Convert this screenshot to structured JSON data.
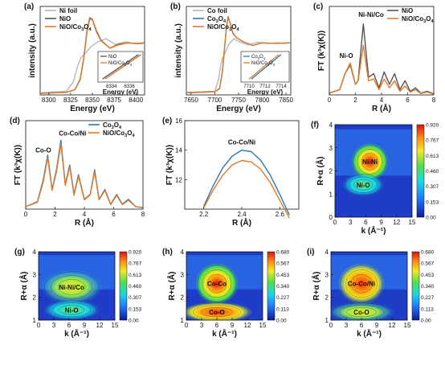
{
  "colors": {
    "foil": "#b8b8b8",
    "nio": "#555555",
    "co3o4": "#2a78b8",
    "composite": "#e07b2a"
  },
  "chart_data": [
    {
      "panel": "(a)",
      "type": "line",
      "xlabel": "Energy (eV)",
      "ylabel": "intensity (a.u.)",
      "xlim": [
        8290,
        8410
      ],
      "ylim": [
        0,
        1.7
      ],
      "xticks": [
        "8300",
        "8325",
        "8350",
        "8375",
        "8400"
      ],
      "legend": [
        "Ni foil",
        "NiO",
        "NiO/Co3O4"
      ],
      "series": [
        {
          "name": "Ni foil",
          "x": [
            8290,
            8320,
            8328,
            8333,
            8337,
            8342,
            8348,
            8356,
            8366,
            8376,
            8388,
            8400,
            8410
          ],
          "y": [
            0.04,
            0.07,
            0.25,
            0.55,
            0.72,
            0.8,
            0.92,
            1.02,
            1.08,
            0.97,
            1.02,
            0.98,
            0.99
          ]
        },
        {
          "name": "NiO",
          "x": [
            8290,
            8320,
            8330,
            8336,
            8340,
            8344,
            8347,
            8350,
            8355,
            8360,
            8370,
            8380,
            8390,
            8400,
            8410
          ],
          "y": [
            0.03,
            0.05,
            0.1,
            0.3,
            0.7,
            1.25,
            1.48,
            1.45,
            1.22,
            1.05,
            0.9,
            0.97,
            1.0,
            0.99,
            1.0
          ]
        },
        {
          "name": "NiO/Co3O4",
          "x": [
            8290,
            8320,
            8330,
            8336,
            8340,
            8344,
            8347,
            8350,
            8355,
            8360,
            8370,
            8380,
            8390,
            8400,
            8410
          ],
          "y": [
            0.03,
            0.05,
            0.1,
            0.29,
            0.68,
            1.22,
            1.46,
            1.44,
            1.2,
            1.04,
            0.9,
            0.96,
            1.0,
            0.99,
            1.0
          ]
        }
      ],
      "inset": {
        "xlabel": "Energy (eV)",
        "xticks": [
          "8334",
          "8336"
        ],
        "legend": [
          "NiO",
          "NiO/Co3O4"
        ],
        "series": [
          {
            "name": "NiO",
            "x": [
              8333,
              8337
            ],
            "y": [
              0.1,
              0.9
            ]
          },
          {
            "name": "NiO/Co3O4",
            "x": [
              8333.3,
              8337.3
            ],
            "y": [
              0.1,
              0.9
            ]
          }
        ]
      }
    },
    {
      "panel": "(b)",
      "type": "line",
      "xlabel": "Energy (eV)",
      "ylabel": "intensity (a.u.)",
      "xlim": [
        7640,
        7860
      ],
      "ylim": [
        0,
        1.7
      ],
      "xticks": [
        "7650",
        "7700",
        "7750",
        "7800",
        "7850"
      ],
      "legend": [
        "Co foil",
        "Co3O4",
        "NiO/Co3O4"
      ],
      "series": [
        {
          "name": "Co foil",
          "x": [
            7640,
            7700,
            7708,
            7712,
            7716,
            7722,
            7730,
            7740,
            7752,
            7770,
            7790,
            7810,
            7830,
            7860
          ],
          "y": [
            0.05,
            0.07,
            0.3,
            0.55,
            0.7,
            0.82,
            0.98,
            1.08,
            1.02,
            0.96,
            1.01,
            0.99,
            1.0,
            1.0
          ]
        },
        {
          "name": "Co3O4",
          "x": [
            7640,
            7700,
            7710,
            7716,
            7720,
            7724,
            7728,
            7732,
            7738,
            7746,
            7760,
            7780,
            7800,
            7830,
            7860
          ],
          "y": [
            0.04,
            0.06,
            0.12,
            0.45,
            0.85,
            1.25,
            1.5,
            1.38,
            1.18,
            1.1,
            1.02,
            0.95,
            1.0,
            0.99,
            1.0
          ]
        },
        {
          "name": "NiO/Co3O4",
          "x": [
            7640,
            7700,
            7710,
            7716,
            7720,
            7724,
            7728,
            7732,
            7738,
            7746,
            7760,
            7780,
            7800,
            7830,
            7860
          ],
          "y": [
            0.04,
            0.06,
            0.13,
            0.46,
            0.86,
            1.26,
            1.51,
            1.39,
            1.19,
            1.1,
            1.02,
            0.95,
            1.0,
            0.99,
            1.0
          ]
        }
      ],
      "inset": {
        "xlabel": "Energy (eV)",
        "xticks": [
          "7710",
          "7712",
          "7714"
        ],
        "legend": [
          "Co3O4",
          "NiO/Co3O4"
        ],
        "series": [
          {
            "name": "Co3O4",
            "x": [
              7710.3,
              7714
            ],
            "y": [
              0.1,
              0.9
            ]
          },
          {
            "name": "NiO/Co3O4",
            "x": [
              7710,
              7713.7
            ],
            "y": [
              0.1,
              0.9
            ]
          }
        ]
      }
    },
    {
      "panel": "(c)",
      "type": "line",
      "xlabel": "R (Å)",
      "ylabel": "FT (k³χ(K))",
      "xlim": [
        0,
        8
      ],
      "ylim": [
        0,
        25
      ],
      "xticks": [
        "0",
        "2",
        "4",
        "6",
        "8"
      ],
      "legend": [
        "NiO",
        "NiO/Co3O4"
      ],
      "annotations": [
        "Ni-O",
        "Ni-Ni/Co"
      ],
      "series": [
        {
          "name": "NiO",
          "x": [
            0,
            0.8,
            1.2,
            1.6,
            2.0,
            2.2,
            2.6,
            3.0,
            3.4,
            3.8,
            4.2,
            4.6,
            5.0,
            5.4,
            5.8,
            6.2,
            6.6,
            7.0,
            7.5,
            8.0
          ],
          "y": [
            0.5,
            1.5,
            6,
            8.5,
            3,
            4,
            20,
            5,
            6,
            2,
            6.5,
            3,
            6,
            1.5,
            4,
            1,
            2,
            0.5,
            1,
            0.3
          ]
        },
        {
          "name": "NiO/Co3O4",
          "x": [
            0,
            0.8,
            1.2,
            1.6,
            2.0,
            2.2,
            2.6,
            3.0,
            3.4,
            3.8,
            4.2,
            4.6,
            5.0,
            5.4,
            5.8,
            6.2,
            6.6,
            7.0,
            7.5,
            8.0
          ],
          "y": [
            0.5,
            1.5,
            6,
            9,
            3,
            4,
            14,
            4,
            4.5,
            1.5,
            4.5,
            2,
            4,
            1,
            2.5,
            0.8,
            1.5,
            0.4,
            0.8,
            0.2
          ]
        }
      ]
    },
    {
      "panel": "(d)",
      "type": "line",
      "xlabel": "R (Å)",
      "ylabel": "FT (k³χ(K))",
      "xlim": [
        0,
        8
      ],
      "ylim": [
        0,
        18
      ],
      "xticks": [
        "0",
        "2",
        "4",
        "6",
        "8"
      ],
      "legend": [
        "Co3O4",
        "NiO/Co3O4"
      ],
      "annotations": [
        "Co-O",
        "Co-Co/Ni"
      ],
      "series": [
        {
          "name": "Co3O4",
          "x": [
            0,
            0.8,
            1.2,
            1.5,
            1.8,
            2.1,
            2.4,
            2.7,
            3.0,
            3.3,
            3.6,
            4.0,
            4.4,
            4.7,
            5.0,
            5.4,
            5.8,
            6.2,
            6.6,
            7.0,
            7.5,
            8.0
          ],
          "y": [
            0.5,
            1.5,
            6,
            11,
            4,
            8,
            14,
            5,
            9,
            3,
            7,
            2,
            3,
            8,
            2,
            4,
            1,
            3,
            1,
            2,
            0.5,
            0.3
          ]
        },
        {
          "name": "NiO/Co3O4",
          "x": [
            0,
            0.8,
            1.2,
            1.5,
            1.8,
            2.1,
            2.4,
            2.7,
            3.0,
            3.3,
            3.6,
            4.0,
            4.4,
            4.7,
            5.0,
            5.4,
            5.8,
            6.2,
            6.6,
            7.0,
            7.5,
            8.0
          ],
          "y": [
            0.5,
            1.4,
            5.6,
            10.5,
            3.8,
            7.6,
            13.3,
            4.8,
            8.6,
            2.8,
            6.7,
            1.9,
            2.9,
            7.6,
            1.9,
            3.8,
            0.9,
            2.8,
            0.9,
            1.8,
            0.5,
            0.3
          ]
        }
      ]
    },
    {
      "panel": "(e)",
      "type": "line",
      "xlabel": "R (Å)",
      "ylabel": "FT (k³χ(K))",
      "xlim": [
        2.1,
        2.7
      ],
      "ylim": [
        10,
        16
      ],
      "xticks": [
        "2.2",
        "2.4",
        "2.6"
      ],
      "yticks": [
        "12",
        "14",
        "16"
      ],
      "annotations": [
        "Co-Co/Ni"
      ],
      "series": [
        {
          "name": "Co3O4",
          "x": [
            2.2,
            2.25,
            2.3,
            2.35,
            2.4,
            2.45,
            2.5,
            2.55,
            2.6,
            2.65
          ],
          "y": [
            10.2,
            11.6,
            12.8,
            13.6,
            14.0,
            13.9,
            13.3,
            12.3,
            11.0,
            9.6
          ]
        },
        {
          "name": "NiO/Co3O4",
          "x": [
            2.2,
            2.25,
            2.3,
            2.35,
            2.4,
            2.45,
            2.5,
            2.55,
            2.6,
            2.65
          ],
          "y": [
            10.1,
            11.3,
            12.3,
            13.0,
            13.3,
            13.2,
            12.7,
            11.8,
            10.6,
            9.4
          ]
        }
      ]
    },
    {
      "panel": "(f)",
      "type": "heatmap",
      "xlabel": "k (Å⁻¹)",
      "ylabel": "R+α (Å)",
      "xlim": [
        0,
        15
      ],
      "ylim": [
        0,
        4
      ],
      "xticks": [
        "0",
        "3",
        "6",
        "9",
        "12",
        "15"
      ],
      "yticks": [
        "0",
        "1",
        "2",
        "3",
        "4"
      ],
      "annotations": [
        "Ni-Ni",
        "Ni-O"
      ],
      "colorbar": [
        "0.920",
        "0.767",
        "0.613",
        "0.460",
        "0.307",
        "0.153",
        "0.00"
      ]
    },
    {
      "panel": "(g)",
      "type": "heatmap",
      "xlabel": "k (Å⁻¹)",
      "ylabel": "R+α (Å)",
      "xlim": [
        0,
        15
      ],
      "ylim": [
        1,
        4
      ],
      "xticks": [
        "0",
        "3",
        "6",
        "9",
        "12",
        "15"
      ],
      "yticks": [
        "1",
        "2",
        "3",
        "4"
      ],
      "annotations": [
        "Ni-Ni/Co",
        "Ni-O"
      ],
      "colorbar": [
        "0.920",
        "0.767",
        "0.613",
        "0.460",
        "0.307",
        "0.153",
        "0.00"
      ]
    },
    {
      "panel": "(h)",
      "type": "heatmap",
      "xlabel": "k (Å⁻¹)",
      "ylabel": "R+α (Å)",
      "xlim": [
        0,
        15
      ],
      "ylim": [
        1,
        4
      ],
      "xticks": [
        "0",
        "3",
        "6",
        "9",
        "12",
        "15"
      ],
      "yticks": [
        "1",
        "2",
        "3",
        "4"
      ],
      "annotations": [
        "Co-Co",
        "Co-O"
      ],
      "colorbar": [
        "0.680",
        "0.567",
        "0.453",
        "0.340",
        "0.227",
        "0.113",
        "0.00"
      ]
    },
    {
      "panel": "(i)",
      "type": "heatmap",
      "xlabel": "k (Å⁻¹)",
      "ylabel": "R+α (Å)",
      "xlim": [
        0,
        15
      ],
      "ylim": [
        1,
        4
      ],
      "xticks": [
        "0",
        "3",
        "6",
        "9",
        "12",
        "15"
      ],
      "yticks": [
        "1",
        "2",
        "3",
        "4"
      ],
      "annotations": [
        "Co-Co/Ni",
        "Co-O"
      ],
      "colorbar": [
        "0.680",
        "0.567",
        "0.453",
        "0.340",
        "0.227",
        "0.113",
        "0.00"
      ]
    }
  ]
}
